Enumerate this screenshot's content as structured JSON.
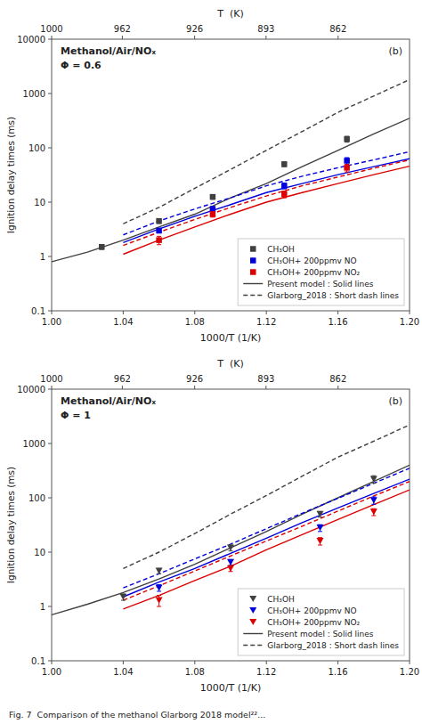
{
  "chart_data": [
    {
      "type": "line",
      "title": "Methanol/Air/NOₓ",
      "subtitle": "Φ = 0.6",
      "annotations": [
        "(b)"
      ],
      "x_label": "1000/T (1/K)",
      "y_label": "Ignition delay times (ms)",
      "x2_label": "T  (K)",
      "xlim": [
        1.0,
        1.2
      ],
      "xticks": [
        {
          "value": 1.0,
          "label": "1.00"
        },
        {
          "value": 1.04,
          "label": "1.04"
        },
        {
          "value": 1.08,
          "label": "1.08"
        },
        {
          "value": 1.12,
          "label": "1.12"
        },
        {
          "value": 1.16,
          "label": "1.16"
        },
        {
          "value": 1.2,
          "label": "1.20"
        }
      ],
      "x2ticks": [
        {
          "value": 1.0,
          "label": "1000"
        },
        {
          "value": 1.0395010395010396,
          "label": "962"
        },
        {
          "value": 1.079913606911447,
          "label": "926"
        },
        {
          "value": 1.1198208286674132,
          "label": "893"
        },
        {
          "value": 1.160092807424594,
          "label": "862"
        }
      ],
      "ylim": [
        0.1,
        10000
      ],
      "yticks": [
        0.1,
        1,
        10,
        100,
        1000,
        10000
      ],
      "log": "y",
      "grid": false,
      "legend": "lower right",
      "series": [
        {
          "name": "CH₃OH",
          "type": "scatter",
          "marker": "square",
          "color": "#404040",
          "x": [
            1.028,
            1.06,
            1.09,
            1.13,
            1.165
          ],
          "values": [
            1.5,
            4.5,
            12.5,
            50,
            145
          ],
          "errors": [
            0.15,
            0.45,
            1.2,
            5,
            18
          ]
        },
        {
          "name": "CH₃OH+ 200ppmv NO",
          "type": "scatter",
          "marker": "square",
          "color": "#0000dd",
          "x": [
            1.06,
            1.09,
            1.13,
            1.165
          ],
          "values": [
            3.0,
            7.5,
            20,
            58
          ],
          "errors": [
            0.3,
            0.8,
            2.5,
            8
          ]
        },
        {
          "name": "CH₃OH+ 200ppmv NO₂",
          "type": "scatter",
          "marker": "square",
          "color": "#dd0000",
          "x": [
            1.06,
            1.09,
            1.13,
            1.165
          ],
          "values": [
            2.0,
            6.0,
            14,
            43
          ],
          "errors": [
            0.35,
            0.7,
            2.0,
            7
          ]
        },
        {
          "name": "Present model : Solid lines",
          "type": "line",
          "line_style": "solid",
          "color": "#404040",
          "x": [
            1.0,
            1.02,
            1.04,
            1.06,
            1.08,
            1.1,
            1.12,
            1.14,
            1.16,
            1.18,
            1.2
          ],
          "values": [
            0.8,
            1.2,
            2.0,
            3.5,
            6.0,
            12.0,
            22.0,
            45.0,
            90.0,
            180.0,
            350.0
          ]
        },
        {
          "name": "Glarborg_2018 : Short dash lines",
          "type": "line",
          "line_style": "dashed",
          "color": "#404040",
          "x": [
            1.04,
            1.06,
            1.08,
            1.1,
            1.12,
            1.14,
            1.16,
            1.18,
            1.2
          ],
          "values": [
            4.0,
            8.0,
            18.0,
            40.0,
            90.0,
            200.0,
            450.0,
            900.0,
            1800.0
          ]
        },
        {
          "type": "line",
          "line_style": "solid",
          "color": "#0000dd",
          "x": [
            1.04,
            1.06,
            1.08,
            1.1,
            1.12,
            1.14,
            1.16,
            1.18,
            1.2
          ],
          "values": [
            1.8,
            3.2,
            5.5,
            9.0,
            15.0,
            22.0,
            32.0,
            45.0,
            63.0
          ]
        },
        {
          "type": "line",
          "line_style": "dashed",
          "color": "#0000dd",
          "x": [
            1.04,
            1.06,
            1.08,
            1.1,
            1.12,
            1.14,
            1.16,
            1.18,
            1.2
          ],
          "values": [
            2.5,
            4.5,
            7.5,
            12.0,
            20.0,
            30.0,
            43.0,
            60.0,
            85.0
          ]
        },
        {
          "type": "line",
          "line_style": "solid",
          "color": "#dd0000",
          "x": [
            1.04,
            1.06,
            1.08,
            1.1,
            1.12,
            1.14,
            1.16,
            1.18,
            1.2
          ],
          "values": [
            1.1,
            2.0,
            3.5,
            6.0,
            10.0,
            15.0,
            22.0,
            32.0,
            46.0
          ]
        },
        {
          "type": "line",
          "line_style": "dashed",
          "color": "#dd0000",
          "x": [
            1.04,
            1.06,
            1.08,
            1.1,
            1.12,
            1.14,
            1.16,
            1.18,
            1.2
          ],
          "values": [
            1.6,
            2.8,
            4.8,
            8.0,
            13.0,
            20.0,
            29.0,
            42.0,
            60.0
          ]
        }
      ]
    },
    {
      "type": "line",
      "title": "Methanol/Air/NOₓ",
      "subtitle": "Φ = 1",
      "annotations": [
        "(b)",
        "Fig. 7  Comparison of the methanol Glarborg 2018 model²²..."
      ],
      "x_label": "1000/T (1/K)",
      "y_label": "Ignition delay times (ms)",
      "x2_label": "T  (K)",
      "xlim": [
        1.0,
        1.2
      ],
      "xticks": [
        {
          "value": 1.0,
          "label": "1.00"
        },
        {
          "value": 1.04,
          "label": "1.04"
        },
        {
          "value": 1.08,
          "label": "1.08"
        },
        {
          "value": 1.12,
          "label": "1.12"
        },
        {
          "value": 1.16,
          "label": "1.16"
        },
        {
          "value": 1.2,
          "label": "1.20"
        }
      ],
      "x2ticks": [
        {
          "value": 1.0,
          "label": "1000"
        },
        {
          "value": 1.0395010395010396,
          "label": "962"
        },
        {
          "value": 1.079913606911447,
          "label": "926"
        },
        {
          "value": 1.1198208286674132,
          "label": "893"
        },
        {
          "value": 1.160092807424594,
          "label": "862"
        }
      ],
      "ylim": [
        0.1,
        10000
      ],
      "yticks": [
        0.1,
        1,
        10,
        100,
        1000,
        10000
      ],
      "log": "y",
      "grid": false,
      "legend": "lower right",
      "series": [
        {
          "name": "CH₃OH",
          "type": "scatter",
          "marker": "triangle-down",
          "color": "#404040",
          "x": [
            1.04,
            1.06,
            1.1,
            1.15,
            1.18
          ],
          "values": [
            1.5,
            4.5,
            12.0,
            50.0,
            220.0
          ],
          "errors": [
            0.2,
            0.5,
            1.5,
            6,
            35
          ]
        },
        {
          "name": "CH₃OH+ 200ppmv NO",
          "type": "scatter",
          "marker": "triangle-down",
          "color": "#0000dd",
          "x": [
            1.06,
            1.1,
            1.15,
            1.18
          ],
          "values": [
            2.2,
            6.5,
            28.0,
            90.0
          ],
          "errors": [
            0.3,
            0.8,
            4,
            14
          ]
        },
        {
          "name": "CH₃OH+ 200ppmv NO₂",
          "type": "scatter",
          "marker": "triangle-down",
          "color": "#dd0000",
          "x": [
            1.06,
            1.1,
            1.15,
            1.18
          ],
          "values": [
            1.3,
            5.0,
            16.0,
            55.0
          ],
          "errors": [
            0.3,
            0.6,
            2.5,
            8
          ]
        },
        {
          "name": "Present model : Solid lines",
          "type": "line",
          "line_style": "solid",
          "color": "#404040",
          "x": [
            1.0,
            1.02,
            1.04,
            1.06,
            1.08,
            1.1,
            1.12,
            1.14,
            1.16,
            1.18,
            1.2
          ],
          "values": [
            0.7,
            1.1,
            1.8,
            3.2,
            6.0,
            12.0,
            24.0,
            50.0,
            100.0,
            200.0,
            400.0
          ]
        },
        {
          "name": "Glarborg_2018 : Short dash lines",
          "type": "line",
          "line_style": "dashed",
          "color": "#404040",
          "x": [
            1.04,
            1.06,
            1.08,
            1.1,
            1.12,
            1.14,
            1.16,
            1.18,
            1.2
          ],
          "values": [
            5.0,
            10.0,
            22.0,
            50.0,
            110.0,
            250.0,
            560.0,
            1100.0,
            2200.0
          ]
        },
        {
          "type": "line",
          "line_style": "solid",
          "color": "#0000dd",
          "x": [
            1.04,
            1.06,
            1.08,
            1.1,
            1.12,
            1.14,
            1.16,
            1.18,
            1.2
          ],
          "values": [
            1.5,
            2.8,
            5.0,
            9.5,
            18.0,
            35.0,
            65.0,
            120.0,
            220.0
          ]
        },
        {
          "type": "line",
          "line_style": "dashed",
          "color": "#0000dd",
          "x": [
            1.04,
            1.06,
            1.08,
            1.1,
            1.12,
            1.14,
            1.16,
            1.18,
            1.2
          ],
          "values": [
            2.2,
            4.0,
            7.5,
            14.0,
            27.0,
            52.0,
            98.0,
            185.0,
            350.0
          ]
        },
        {
          "type": "line",
          "line_style": "solid",
          "color": "#dd0000",
          "x": [
            1.04,
            1.06,
            1.08,
            1.1,
            1.12,
            1.14,
            1.16,
            1.18,
            1.2
          ],
          "values": [
            0.9,
            1.6,
            3.0,
            5.5,
            11.0,
            21.0,
            40.0,
            75.0,
            140.0
          ]
        },
        {
          "type": "line",
          "line_style": "dashed",
          "color": "#dd0000",
          "x": [
            1.04,
            1.06,
            1.08,
            1.1,
            1.12,
            1.14,
            1.16,
            1.18,
            1.2
          ],
          "values": [
            1.3,
            2.4,
            4.5,
            8.5,
            16.0,
            30.0,
            57.0,
            108.0,
            200.0
          ]
        }
      ]
    }
  ]
}
